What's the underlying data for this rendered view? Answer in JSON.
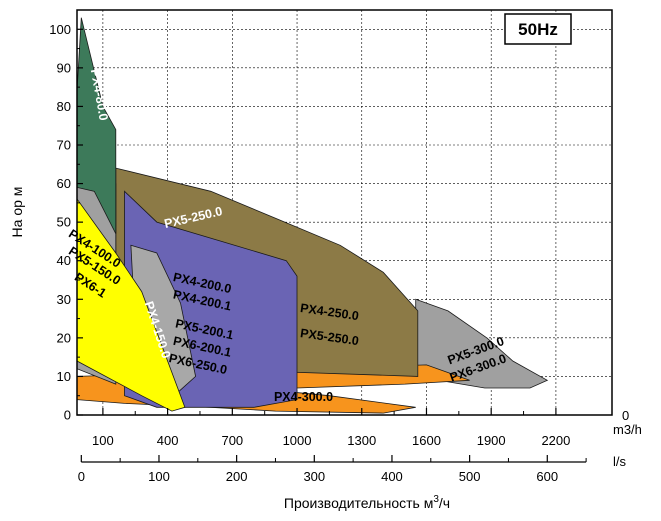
{
  "chart_data": {
    "type": "area",
    "badge": "50Hz",
    "ylabel": "На ор м",
    "xlabel_prefix": "Производительность м",
    "xlabel_sup": "3",
    "xlabel_suffix": "/ч",
    "y_ticks": [
      "0",
      "10",
      "20",
      "30",
      "40",
      "50",
      "60",
      "70",
      "80",
      "90",
      "100"
    ],
    "y_range": [
      0,
      105
    ],
    "x_range_m3h": [
      -20,
      2460
    ],
    "x_ticks_m3h": [
      "100",
      "400",
      "700",
      "1000",
      "1300",
      "1600",
      "1900",
      "2200"
    ],
    "x_unit_m3h": "m3/h",
    "x_end_label_m3h": "0",
    "x_ticks_ls": [
      "0",
      "100",
      "200",
      "300",
      "400",
      "500",
      "600"
    ],
    "x_unit_ls": "l/s",
    "regions": [
      {
        "name": "PX5-300.0 PX6-300.0",
        "color": "#a0a0a0",
        "points": [
          [
            1550,
            30
          ],
          [
            1700,
            27
          ],
          [
            1880,
            20
          ],
          [
            2000,
            14
          ],
          [
            2160,
            9
          ],
          [
            2080,
            7
          ],
          [
            1870,
            7
          ],
          [
            1550,
            10
          ]
        ]
      },
      {
        "name": "PX4-300.0",
        "color": "#f7941d",
        "points": [
          [
            -20,
            10
          ],
          [
            1600,
            13
          ],
          [
            1800,
            9
          ],
          [
            1500,
            8
          ],
          [
            1000,
            7
          ],
          [
            780,
            7
          ],
          [
            1150,
            5
          ],
          [
            1550,
            2
          ],
          [
            1400,
            0.5
          ],
          [
            900,
            1
          ],
          [
            600,
            2
          ],
          [
            200,
            3
          ],
          [
            -20,
            4
          ]
        ]
      },
      {
        "name": "PX5-250.0",
        "color": "#8c7a46",
        "points": [
          [
            160,
            64
          ],
          [
            600,
            58
          ],
          [
            900,
            51
          ],
          [
            1200,
            44
          ],
          [
            1400,
            37
          ],
          [
            1560,
            27
          ],
          [
            1560,
            10
          ],
          [
            500,
            12
          ],
          [
            300,
            15
          ],
          [
            160,
            17
          ]
        ]
      },
      {
        "name": "PX4-80.0",
        "color": "#a0a0a0",
        "points": [
          [
            -20,
            66
          ],
          [
            160,
            60
          ],
          [
            160,
            8
          ],
          [
            -20,
            12
          ]
        ]
      },
      {
        "name": "PX4-200.0 PX4-200.1 PX5-200.1 PX6-200.1 PX6-250.0",
        "color": "#6a64b4",
        "points": [
          [
            200,
            58
          ],
          [
            350,
            50
          ],
          [
            650,
            45
          ],
          [
            950,
            40
          ],
          [
            1000,
            36
          ],
          [
            1000,
            4
          ],
          [
            800,
            2
          ],
          [
            500,
            2
          ],
          [
            350,
            2
          ],
          [
            200,
            5
          ]
        ]
      },
      {
        "name": "PX4-150.0",
        "color": "#a8a8a8",
        "points": [
          [
            230,
            44
          ],
          [
            350,
            42
          ],
          [
            460,
            29
          ],
          [
            530,
            10
          ],
          [
            430,
            5
          ],
          [
            260,
            12
          ]
        ]
      },
      {
        "name": "PX4-100.0 PX5-150.0 PX6-1",
        "color": "#ffff00",
        "points": [
          [
            -20,
            56
          ],
          [
            160,
            42
          ],
          [
            280,
            32
          ],
          [
            480,
            2
          ],
          [
            420,
            1
          ],
          [
            280,
            5
          ],
          [
            -20,
            14
          ]
        ]
      },
      {
        "name": "PX4-80.0 top",
        "color": "#3d7a5a",
        "points": [
          [
            0,
            103
          ],
          [
            100,
            80
          ],
          [
            160,
            74
          ],
          [
            160,
            47
          ],
          [
            60,
            58
          ],
          [
            -20,
            59
          ],
          [
            -20,
            84
          ]
        ]
      }
    ],
    "labels": [
      {
        "text": "PX4-80.0",
        "x": 80,
        "y": 83,
        "angle": 80,
        "color": "#ffffff"
      },
      {
        "text": "PX5-250.0",
        "x": 520,
        "y": 51,
        "angle": -13,
        "color": "#ffffff"
      },
      {
        "text": "PX4-100.0",
        "x": 60,
        "y": 43,
        "angle": 33,
        "color": "#000000"
      },
      {
        "text": "PX5-150.0",
        "x": 60,
        "y": 38.5,
        "angle": 33,
        "color": "#000000"
      },
      {
        "text": "PX6-1",
        "x": 40,
        "y": 33.5,
        "angle": 33,
        "color": "#000000"
      },
      {
        "text": "PX4-150.0",
        "x": 350,
        "y": 22,
        "angle": 72,
        "color": "#ffffff"
      },
      {
        "text": "PX4-200.0",
        "x": 560,
        "y": 34,
        "angle": 12,
        "color": "#000000"
      },
      {
        "text": "PX4-200.1",
        "x": 560,
        "y": 29.5,
        "angle": 12,
        "color": "#000000"
      },
      {
        "text": "PX5-200.1",
        "x": 570,
        "y": 22,
        "angle": 12,
        "color": "#000000"
      },
      {
        "text": "PX6-200.1",
        "x": 560,
        "y": 17.5,
        "angle": 12,
        "color": "#000000"
      },
      {
        "text": "PX6-250.0",
        "x": 540,
        "y": 13,
        "angle": 12,
        "color": "#000000"
      },
      {
        "text": "PX4-250.0",
        "x": 1150,
        "y": 26.5,
        "angle": 8,
        "color": "#000000"
      },
      {
        "text": "PX5-250.0",
        "x": 1150,
        "y": 20,
        "angle": 8,
        "color": "#000000"
      },
      {
        "text": "PX4-300.0",
        "x": 1030,
        "y": 4.5,
        "angle": 0,
        "color": "#000000"
      },
      {
        "text": "PX5-300.0",
        "x": 1830,
        "y": 16.5,
        "angle": -20,
        "color": "#000000"
      },
      {
        "text": "PX6-300.0",
        "x": 1840,
        "y": 12,
        "angle": -20,
        "color": "#000000"
      }
    ]
  }
}
